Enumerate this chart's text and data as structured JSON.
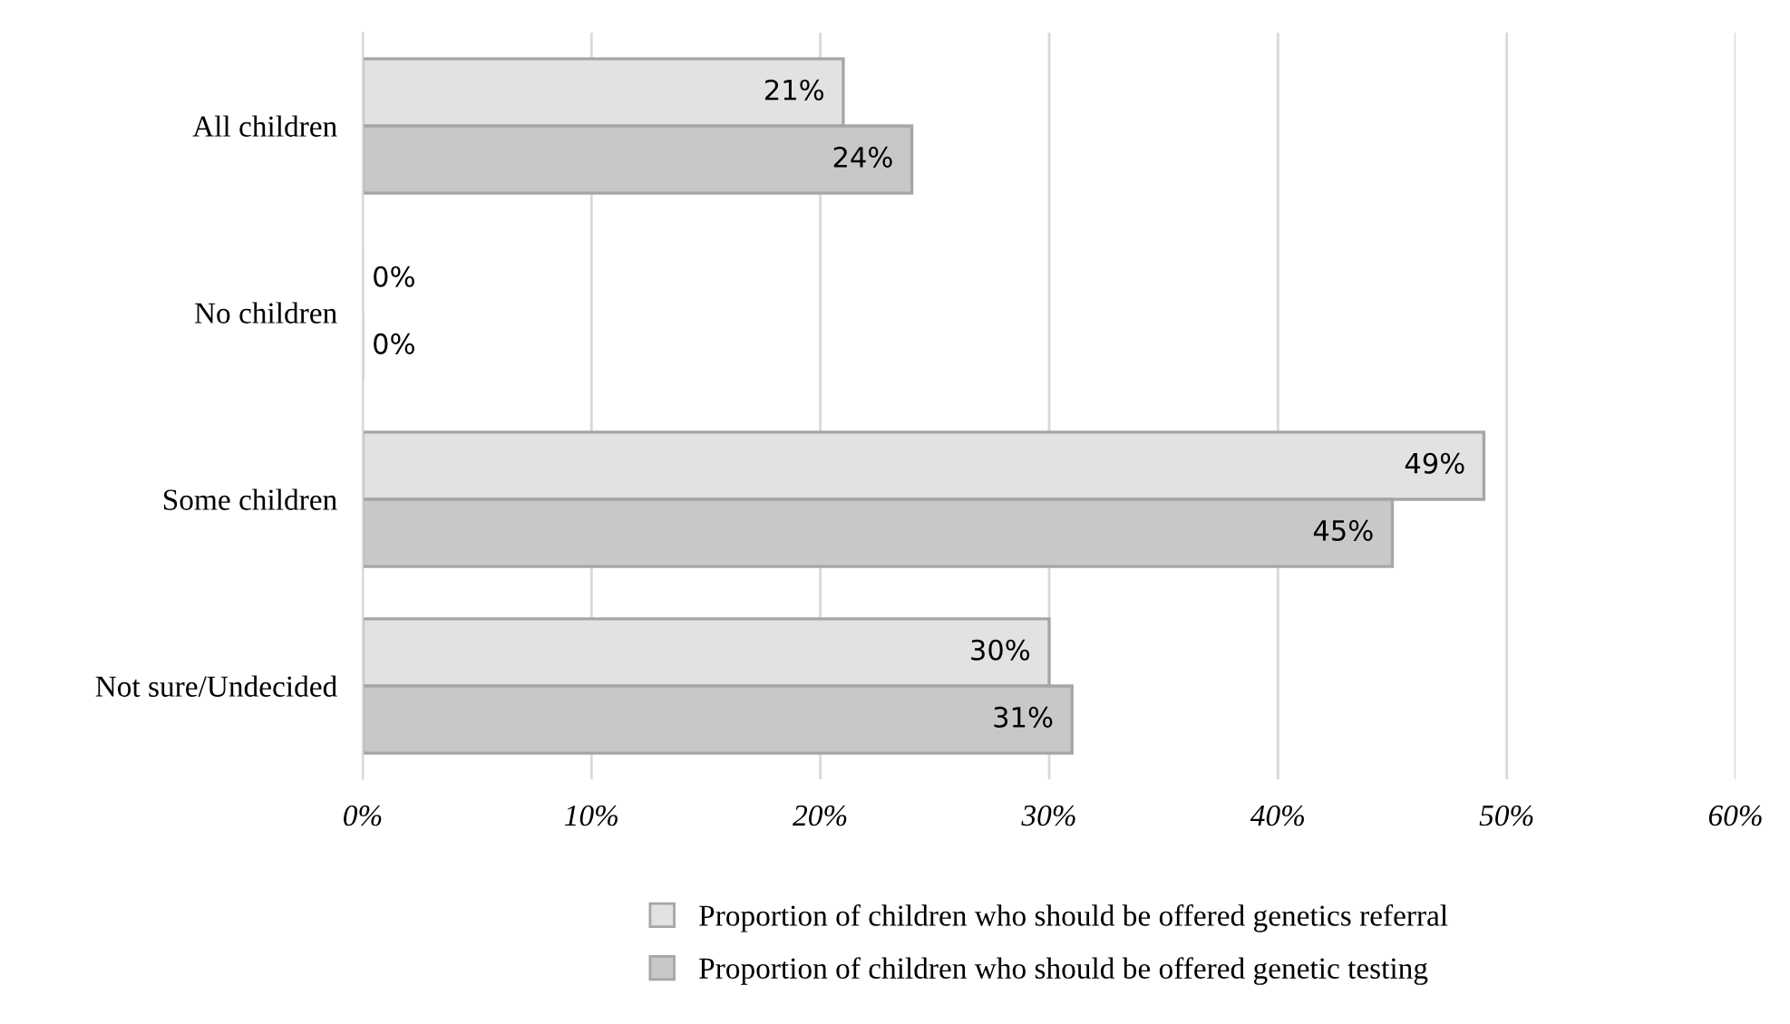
{
  "chart_data": {
    "type": "bar",
    "orientation": "horizontal",
    "categories": [
      "All children",
      "No children",
      "Some children",
      "Not sure/Undecided"
    ],
    "series": [
      {
        "name": "Proportion of children who should be offered genetics referral",
        "color": "#e2e2e2",
        "values": [
          21,
          0,
          49,
          30
        ],
        "value_labels": [
          "21%",
          "0%",
          "49%",
          "30%"
        ]
      },
      {
        "name": "Proportion of children who should be offered genetic testing",
        "color": "#c8c8c8",
        "values": [
          24,
          0,
          45,
          31
        ],
        "value_labels": [
          "24%",
          "0%",
          "45%",
          "31%"
        ]
      }
    ],
    "xlim": [
      0,
      60
    ],
    "xticks": [
      {
        "value": 0,
        "label": "0%"
      },
      {
        "value": 10,
        "label": "10%"
      },
      {
        "value": 20,
        "label": "20%"
      },
      {
        "value": 30,
        "label": "30%"
      },
      {
        "value": 40,
        "label": "40%"
      },
      {
        "value": 50,
        "label": "50%"
      },
      {
        "value": 60,
        "label": "60%"
      }
    ],
    "grid": "x",
    "legend": "bottom"
  }
}
